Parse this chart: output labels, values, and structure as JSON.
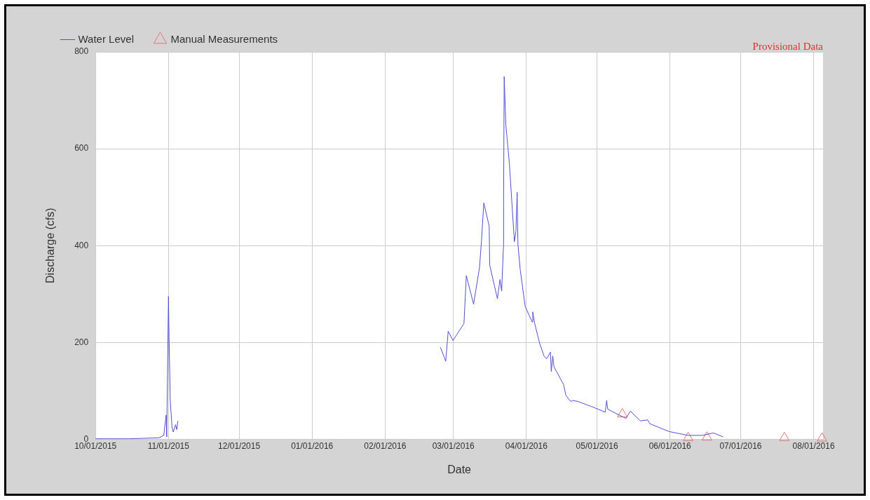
{
  "chart_data": {
    "type": "line",
    "xlabel": "Date",
    "ylabel": "Discharge (cfs)",
    "annotations": [
      "Provisional Data"
    ],
    "xlim": [
      "2015-10-01",
      "2016-08-05"
    ],
    "xticks": [
      {
        "value": "2015-10-01",
        "label": "10/01/2015"
      },
      {
        "value": "2015-11-01",
        "label": "11/01/2015"
      },
      {
        "value": "2015-12-01",
        "label": "12/01/2015"
      },
      {
        "value": "2016-01-01",
        "label": "01/01/2016"
      },
      {
        "value": "2016-02-01",
        "label": "02/01/2016"
      },
      {
        "value": "2016-03-01",
        "label": "03/01/2016"
      },
      {
        "value": "2016-04-01",
        "label": "04/01/2016"
      },
      {
        "value": "2016-05-01",
        "label": "05/01/2016"
      },
      {
        "value": "2016-06-01",
        "label": "06/01/2016"
      },
      {
        "value": "2016-07-01",
        "label": "07/01/2016"
      },
      {
        "value": "2016-08-01",
        "label": "08/01/2016"
      }
    ],
    "ylim": [
      0,
      800
    ],
    "yticks": [
      0,
      200,
      400,
      600,
      800
    ],
    "grid": true,
    "legend": "top left",
    "series": [
      {
        "name": "Water Level",
        "marker": "none",
        "line_style": "solid",
        "color": "#5050d8",
        "x": [
          "2015-10-01",
          "2015-10-15",
          "2015-10-28",
          "2015-10-30",
          "2015-10-31T00:00",
          "2015-10-31T06:00",
          "2015-11-01T00:00",
          "2015-11-01T06:00",
          "2015-11-01T18:00",
          "2015-11-02T12:00",
          "2015-11-03",
          "2015-11-04",
          "2015-11-04T12:00",
          "2015-11-05",
          "2015-12-15",
          "2016-02-24T12:00",
          "2016-02-26T18:00",
          "2016-02-27T19:00",
          "2016-02-29T20:00",
          "2016-03-05T12:00",
          "2016-03-06T12:00",
          "2016-03-09T14:00",
          "2016-03-12T02:00",
          "2016-03-12T22:00",
          "2016-03-13T22:00",
          "2016-03-16T05:00",
          "2016-03-16T10:00",
          "2016-03-19T17:00",
          "2016-03-20T19:00",
          "2016-03-21T12:00",
          "2016-03-22T07:00",
          "2016-03-22T08:00",
          "2016-03-22T14:00",
          "2016-03-23T07:00",
          "2016-03-24T02:00",
          "2016-03-24T19:00",
          "2016-03-26T22:00",
          "2016-03-27T14:00",
          "2016-03-28T02:00",
          "2016-03-28T10:00",
          "2016-03-29T10:00",
          "2016-03-31T12:00",
          "2016-04-03T12:00",
          "2016-04-03T17:00",
          "2016-04-04T12:00",
          "2016-04-06T14:00",
          "2016-04-08T12:00",
          "2016-04-09T14:00",
          "2016-04-11T05:00",
          "2016-04-11T14:00",
          "2016-04-12T05:00",
          "2016-04-12T17:00",
          "2016-04-16T19:00",
          "2016-04-17T19:00",
          "2016-04-19T19:00",
          "2016-04-20T19:00",
          "2016-04-22T22:00",
          "2016-04-29",
          "2016-05-04T12:00",
          "2016-05-05T02:00",
          "2016-05-05T14:00",
          "2016-05-13T07:00",
          "2016-05-15T05:00",
          "2016-05-19T10:00",
          "2016-05-22T12:00",
          "2016-05-23T12:00",
          "2016-05-31T14:00",
          "2016-06-08T17:00",
          "2016-06-14T19:00",
          "2016-06-19T10:00",
          "2016-06-23T14:00"
        ],
        "values": [
          1,
          1,
          3,
          8,
          50,
          5,
          295,
          210,
          80,
          25,
          15,
          30,
          20,
          38,
          null,
          190,
          161,
          223,
          204,
          239,
          338,
          279,
          354,
          408,
          488,
          440,
          360,
          290,
          330,
          306,
          400,
          494,
          749,
          649,
          607,
          569,
          408,
          430,
          510,
          403,
          349,
          274,
          242,
          263,
          240,
          199,
          172,
          166,
          180,
          140,
          172,
          150,
          113,
          91,
          78,
          80,
          78,
          67,
          56,
          80,
          62,
          43,
          58,
          38,
          40,
          32,
          16,
          8,
          8,
          13,
          5
        ]
      },
      {
        "name": "Manual Measurements",
        "type": "scatter",
        "marker": "triangle",
        "color": "#e07878",
        "x": [
          "2016-05-11T18:00",
          "2016-06-08T17:00",
          "2016-06-16T17:00",
          "2016-07-19T14:00",
          "2016-08-04T14:00"
        ],
        "values": [
          52,
          3,
          4,
          3,
          2
        ]
      }
    ]
  }
}
